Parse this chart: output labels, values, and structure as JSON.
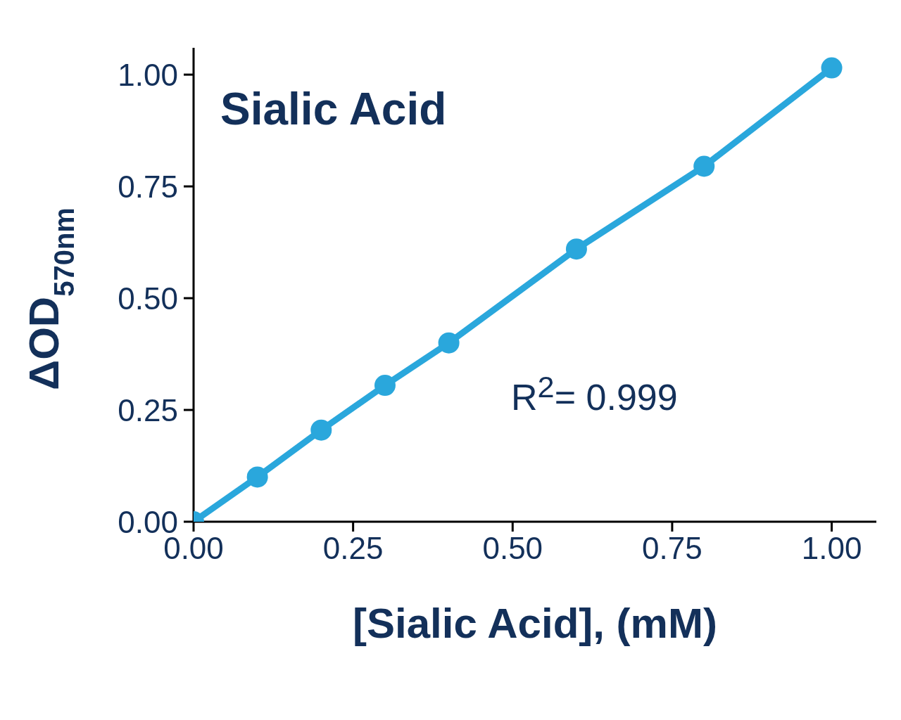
{
  "chart_data": {
    "type": "line",
    "title": "Sialic Acid",
    "xlabel": "[Sialic Acid], (mM)",
    "ylabel": "ΔOD$_{570nm}$",
    "annotations": [
      "R$^{2}$= 0.999"
    ],
    "x": [
      0,
      0.1,
      0.2,
      0.3,
      0.4,
      0.6,
      0.8,
      1.0
    ],
    "series": [
      {
        "color": "#2aa7dc",
        "values": [
          0,
          0.1,
          0.205,
          0.305,
          0.4,
          0.61,
          0.795,
          1.015
        ]
      }
    ],
    "xlim": [
      0,
      1.07
    ],
    "ylim": [
      0,
      1.06
    ],
    "xticks": [
      {
        "value": 0,
        "label": "0.00"
      },
      {
        "value": 0.25,
        "label": "0.25"
      },
      {
        "value": 0.5,
        "label": "0.50"
      },
      {
        "value": 0.75,
        "label": "0.75"
      },
      {
        "value": 1,
        "label": "1.00"
      }
    ],
    "yticks": [
      {
        "value": 0,
        "label": "0.00"
      },
      {
        "value": 0.25,
        "label": "0.25"
      },
      {
        "value": 0.5,
        "label": "0.50"
      },
      {
        "value": 0.75,
        "label": "0.75"
      },
      {
        "value": 1,
        "label": "1.00"
      }
    ],
    "marker": "circle",
    "line_style": "solid"
  }
}
